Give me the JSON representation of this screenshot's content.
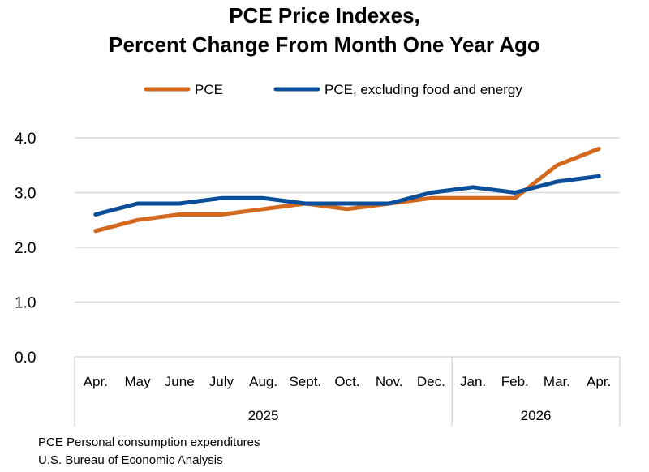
{
  "chart_data": {
    "type": "line",
    "title_line1": "PCE Price Indexes,",
    "title_line2": "Percent Change From Month One Year Ago",
    "categories": [
      "Apr.",
      "May",
      "June",
      "July",
      "Aug.",
      "Sept.",
      "Oct.",
      "Nov.",
      "Dec.",
      "Jan.",
      "Feb.",
      "Mar.",
      "Apr."
    ],
    "year_groups": [
      {
        "label": "2025",
        "start": 0,
        "end": 8
      },
      {
        "label": "2026",
        "start": 9,
        "end": 12
      }
    ],
    "series": [
      {
        "name": "PCE",
        "color": "#d2691e",
        "values": [
          2.3,
          2.5,
          2.6,
          2.6,
          2.7,
          2.8,
          2.7,
          2.8,
          2.9,
          2.9,
          2.9,
          3.5,
          3.8
        ]
      },
      {
        "name": "PCE, excluding food and energy",
        "color": "#0b4f9a",
        "values": [
          2.6,
          2.8,
          2.8,
          2.9,
          2.9,
          2.8,
          2.8,
          2.8,
          3.0,
          3.1,
          3.0,
          3.2,
          3.3
        ]
      }
    ],
    "y_ticks": [
      "0.0",
      "1.0",
      "2.0",
      "3.0",
      "4.0"
    ],
    "ylim": [
      0,
      4
    ],
    "grid": true,
    "legend_position": "top-center"
  },
  "footnotes": {
    "line1": "PCE Personal consumption expenditures",
    "line2": "U.S. Bureau of Economic Analysis"
  }
}
